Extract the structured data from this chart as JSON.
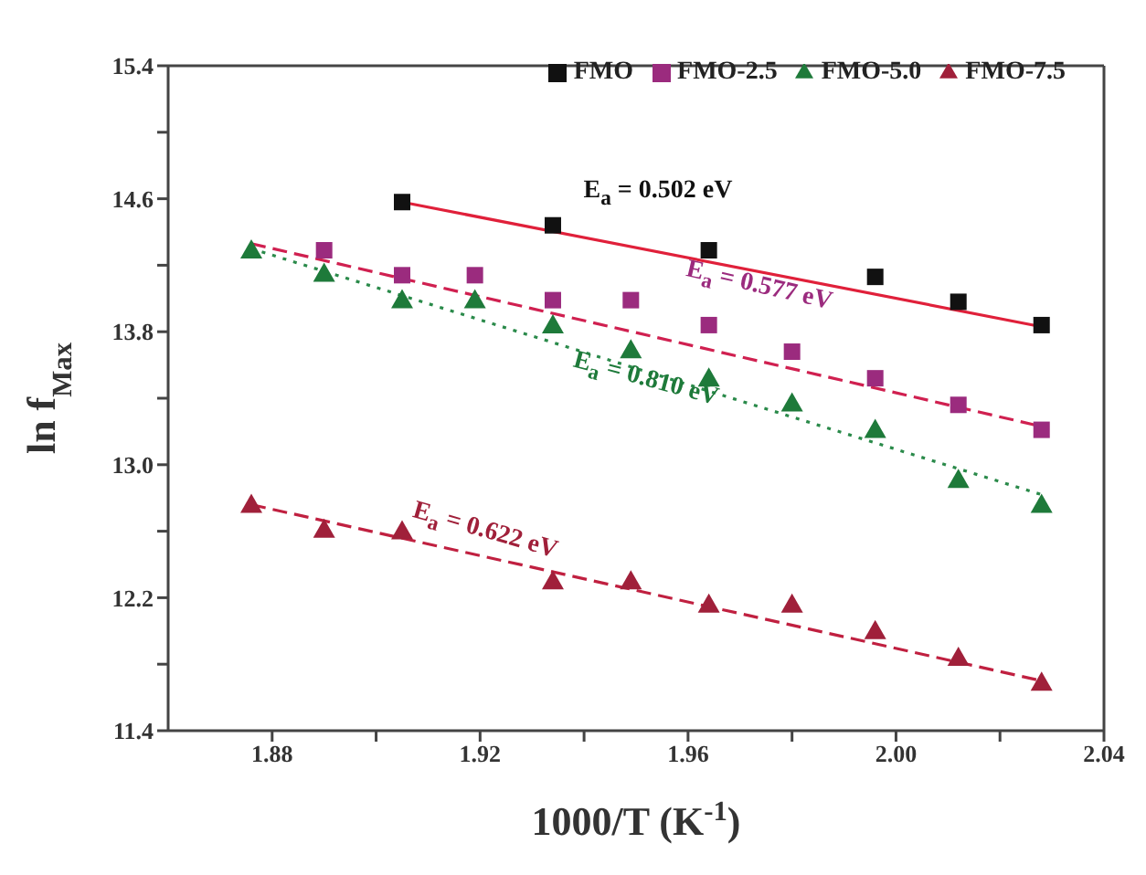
{
  "chart_data": {
    "type": "scatter",
    "xlabel": "1000/T (K$^{-1}$)",
    "ylabel": "ln f$_{Max}$",
    "x": [
      1.876,
      1.89,
      1.905,
      1.919,
      1.934,
      1.949,
      1.964,
      1.98,
      1.996,
      2.012,
      2.028
    ],
    "xlim": [
      1.86,
      2.04
    ],
    "xticks": [
      1.88,
      {
        "value": 1.9,
        "label": null
      },
      1.92,
      {
        "value": 1.94,
        "label": null
      },
      1.96,
      {
        "value": 1.98,
        "label": null
      },
      {
        "value": 2,
        "label": "2.00"
      },
      {
        "value": 2.02,
        "label": null
      },
      2.04
    ],
    "ylim": [
      11.4,
      15.4
    ],
    "yticks": [
      11.4,
      {
        "value": 11.8,
        "label": null
      },
      12.2,
      {
        "value": 12.6,
        "label": null
      },
      {
        "value": 13,
        "label": "13.0"
      },
      {
        "value": 13.4,
        "label": null
      },
      13.8,
      {
        "value": 14.2,
        "label": null
      },
      14.6,
      {
        "value": 15.0,
        "label": null
      },
      15.4
    ],
    "legend": "top right",
    "grid": false,
    "series": [
      {
        "name": "FMO",
        "color": "#111111",
        "marker": "square",
        "values": [
          null,
          null,
          14.58,
          null,
          14.44,
          null,
          14.29,
          null,
          14.13,
          13.98,
          13.84
        ]
      },
      {
        "name": "FMO-2.5",
        "color": "#9b2b7e",
        "marker": "square",
        "values": [
          null,
          14.29,
          14.14,
          14.14,
          13.99,
          13.99,
          13.84,
          13.68,
          13.52,
          13.36,
          13.21
        ]
      },
      {
        "name": "FMO-5.0",
        "color": "#1e7a3a",
        "marker": "triangle",
        "values": [
          14.29,
          14.15,
          13.99,
          13.99,
          13.84,
          13.69,
          13.52,
          13.37,
          13.21,
          12.91,
          12.76
        ]
      },
      {
        "name": "FMO-7.5",
        "color": "#a0203a",
        "marker": "triangle",
        "values": [
          12.76,
          12.61,
          12.6,
          null,
          12.3,
          12.3,
          12.16,
          12.16,
          12.0,
          11.84,
          11.69
        ]
      },
      {
        "type": "line",
        "color": "#e0203a",
        "line_style": "solid",
        "marker": "none",
        "x": [
          1.905,
          2.028
        ],
        "values": [
          14.58,
          13.83
        ]
      },
      {
        "type": "line",
        "color": "#d02050",
        "line_style": "dashed",
        "marker": "none",
        "x": [
          1.876,
          2.028
        ],
        "values": [
          14.33,
          13.23
        ]
      },
      {
        "type": "line",
        "color": "#2a8a4a",
        "line_style": "dotted",
        "marker": "none",
        "x": [
          1.876,
          2.028
        ],
        "values": [
          14.3,
          12.82
        ]
      },
      {
        "type": "line",
        "color": "#c02040",
        "line_style": "dashed",
        "marker": "none",
        "x": [
          1.876,
          2.028
        ],
        "values": [
          12.76,
          11.7
        ]
      }
    ],
    "annotations": [
      "E$_{a}$ = 0.502 eV",
      "E$_{a}$ = 0.577 eV",
      "E$_{a}$ = 0.810 eV",
      "E$_{a}$ = 0.622 eV"
    ]
  }
}
